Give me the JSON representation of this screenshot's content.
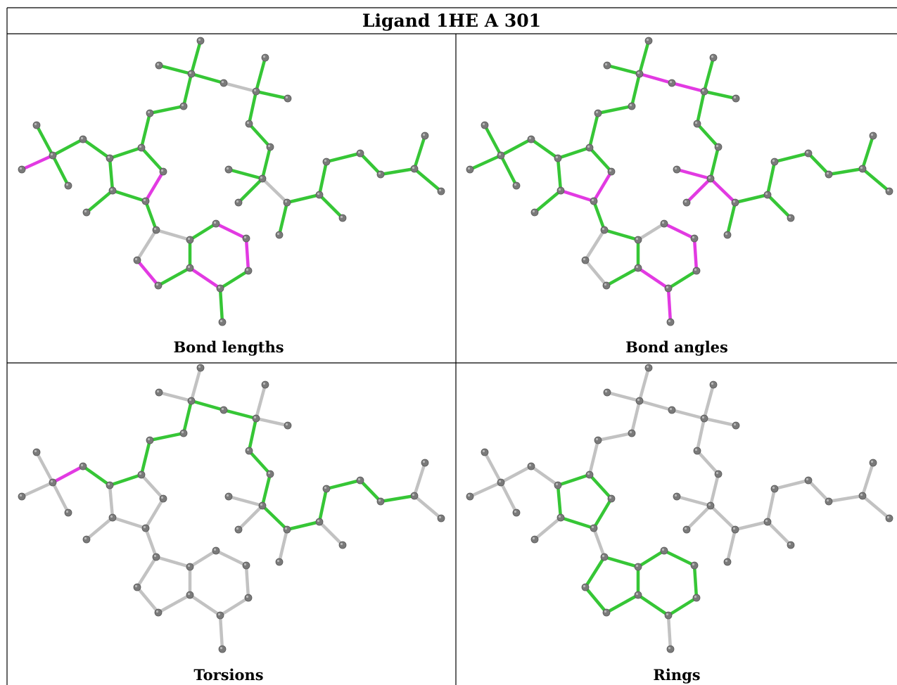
{
  "title": "Ligand 1HE A 301",
  "panels": [
    {
      "id": "bond-lengths",
      "caption": "Bond lengths"
    },
    {
      "id": "bond-angles",
      "caption": "Bond angles"
    },
    {
      "id": "torsions",
      "caption": "Torsions"
    },
    {
      "id": "rings",
      "caption": "Rings"
    }
  ],
  "colors": {
    "normal": "#36c636",
    "outlier": "#e23ae2",
    "unassessed": "#c2c2c2",
    "atom": "#7a7a7a"
  },
  "molecule": {
    "atoms": [
      [
        "A0",
        285,
        58
      ],
      [
        "A1",
        226,
        93
      ],
      [
        "A2",
        272,
        105
      ],
      [
        "A3",
        377,
        82
      ],
      [
        "A4",
        318,
        118
      ],
      [
        "A5",
        364,
        130
      ],
      [
        "A6",
        409,
        140
      ],
      [
        "A7",
        261,
        151
      ],
      [
        "A8",
        213,
        161
      ],
      [
        "A9",
        354,
        176
      ],
      [
        "A10",
        52,
        178
      ],
      [
        "A11",
        118,
        198
      ],
      [
        "A12",
        201,
        210
      ],
      [
        "A13",
        384,
        209
      ],
      [
        "A14",
        604,
        193
      ],
      [
        "A15",
        512,
        218
      ],
      [
        "A16",
        75,
        221
      ],
      [
        "A17",
        156,
        225
      ],
      [
        "A18",
        464,
        230
      ],
      [
        "A19",
        31,
        241
      ],
      [
        "A20",
        232,
        244
      ],
      [
        "A21",
        325,
        241
      ],
      [
        "A22",
        589,
        240
      ],
      [
        "A23",
        373,
        254
      ],
      [
        "A24",
        541,
        248
      ],
      [
        "A25",
        97,
        264
      ],
      [
        "A26",
        627,
        272
      ],
      [
        "A27",
        160,
        271
      ],
      [
        "A28",
        454,
        277
      ],
      [
        "A29",
        207,
        286
      ],
      [
        "A30",
        408,
        288
      ],
      [
        "A31",
        339,
        288
      ],
      [
        "A32",
        123,
        302
      ],
      [
        "A33",
        487,
        310
      ],
      [
        "A34",
        222,
        327
      ],
      [
        "A35",
        307,
        318
      ],
      [
        "A36",
        270,
        341
      ],
      [
        "A37",
        350,
        339
      ],
      [
        "A38",
        397,
        334
      ],
      [
        "A39",
        195,
        370
      ],
      [
        "A40",
        270,
        381
      ],
      [
        "A41",
        353,
        385
      ],
      [
        "A42",
        225,
        406
      ],
      [
        "A43",
        313,
        410
      ],
      [
        "A44",
        316,
        458
      ]
    ],
    "bonds": [
      [
        "A0",
        "A2"
      ],
      [
        "A1",
        "A2"
      ],
      [
        "A2",
        "A4"
      ],
      [
        "A2",
        "A7"
      ],
      [
        "A4",
        "A5"
      ],
      [
        "A3",
        "A5"
      ],
      [
        "A5",
        "A6"
      ],
      [
        "A5",
        "A9"
      ],
      [
        "A9",
        "A13"
      ],
      [
        "A13",
        "A23"
      ],
      [
        "A7",
        "A8"
      ],
      [
        "A8",
        "A12"
      ],
      [
        "A10",
        "A16"
      ],
      [
        "A16",
        "A11"
      ],
      [
        "A16",
        "A19"
      ],
      [
        "A16",
        "A25"
      ],
      [
        "A11",
        "A17"
      ],
      [
        "A17",
        "A12"
      ],
      [
        "A12",
        "A20"
      ],
      [
        "A20",
        "A29"
      ],
      [
        "A29",
        "A27"
      ],
      [
        "A27",
        "A17"
      ],
      [
        "A27",
        "A32"
      ],
      [
        "A29",
        "A34"
      ],
      [
        "A23",
        "A21"
      ],
      [
        "A23",
        "A31"
      ],
      [
        "A23",
        "A30"
      ],
      [
        "A30",
        "A38"
      ],
      [
        "A30",
        "A28"
      ],
      [
        "A28",
        "A33"
      ],
      [
        "A28",
        "A18"
      ],
      [
        "A18",
        "A15"
      ],
      [
        "A15",
        "A24"
      ],
      [
        "A24",
        "A22"
      ],
      [
        "A22",
        "A14"
      ],
      [
        "A22",
        "A26"
      ],
      [
        "A34",
        "A36"
      ],
      [
        "A34",
        "A39"
      ],
      [
        "A39",
        "A42"
      ],
      [
        "A42",
        "A40"
      ],
      [
        "A40",
        "A36"
      ],
      [
        "A36",
        "A35"
      ],
      [
        "A35",
        "A37"
      ],
      [
        "A37",
        "A41"
      ],
      [
        "A41",
        "A43"
      ],
      [
        "A43",
        "A40"
      ],
      [
        "A43",
        "A44"
      ]
    ],
    "panel_bond_status": {
      "bond-lengths": {
        "default": "normal",
        "outlier": [
          [
            "A16",
            "A19"
          ],
          [
            "A20",
            "A29"
          ],
          [
            "A35",
            "A37"
          ],
          [
            "A37",
            "A41"
          ],
          [
            "A40",
            "A43"
          ],
          [
            "A39",
            "A42"
          ]
        ],
        "unassessed": [
          [
            "A4",
            "A5"
          ],
          [
            "A23",
            "A30"
          ],
          [
            "A34",
            "A39"
          ],
          [
            "A34",
            "A36"
          ]
        ]
      },
      "bond-angles": {
        "default": "normal",
        "outlier": [
          [
            "A2",
            "A4"
          ],
          [
            "A4",
            "A5"
          ],
          [
            "A27",
            "A29"
          ],
          [
            "A20",
            "A29"
          ],
          [
            "A23",
            "A21"
          ],
          [
            "A23",
            "A31"
          ],
          [
            "A23",
            "A30"
          ],
          [
            "A35",
            "A37"
          ],
          [
            "A37",
            "A41"
          ],
          [
            "A40",
            "A43"
          ],
          [
            "A43",
            "A44"
          ]
        ],
        "unassessed": [
          [
            "A34",
            "A39"
          ],
          [
            "A39",
            "A42"
          ],
          [
            "A35",
            "A36"
          ]
        ]
      },
      "torsions": {
        "default": "unassessed",
        "outlier": [
          [
            "A11",
            "A16"
          ]
        ],
        "normal": [
          [
            "A11",
            "A17"
          ],
          [
            "A17",
            "A12"
          ],
          [
            "A12",
            "A8"
          ],
          [
            "A8",
            "A7"
          ],
          [
            "A7",
            "A2"
          ],
          [
            "A2",
            "A4"
          ],
          [
            "A4",
            "A5"
          ],
          [
            "A5",
            "A9"
          ],
          [
            "A9",
            "A13"
          ],
          [
            "A13",
            "A23"
          ],
          [
            "A23",
            "A30"
          ],
          [
            "A30",
            "A28"
          ],
          [
            "A28",
            "A18"
          ],
          [
            "A18",
            "A15"
          ],
          [
            "A15",
            "A24"
          ],
          [
            "A24",
            "A22"
          ]
        ]
      },
      "rings": {
        "default": "unassessed",
        "normal": [
          [
            "A12",
            "A20"
          ],
          [
            "A20",
            "A29"
          ],
          [
            "A29",
            "A27"
          ],
          [
            "A27",
            "A17"
          ],
          [
            "A17",
            "A12"
          ],
          [
            "A34",
            "A36"
          ],
          [
            "A34",
            "A39"
          ],
          [
            "A39",
            "A42"
          ],
          [
            "A42",
            "A40"
          ],
          [
            "A40",
            "A36"
          ],
          [
            "A36",
            "A35"
          ],
          [
            "A35",
            "A37"
          ],
          [
            "A37",
            "A41"
          ],
          [
            "A41",
            "A43"
          ],
          [
            "A43",
            "A40"
          ]
        ]
      }
    }
  }
}
